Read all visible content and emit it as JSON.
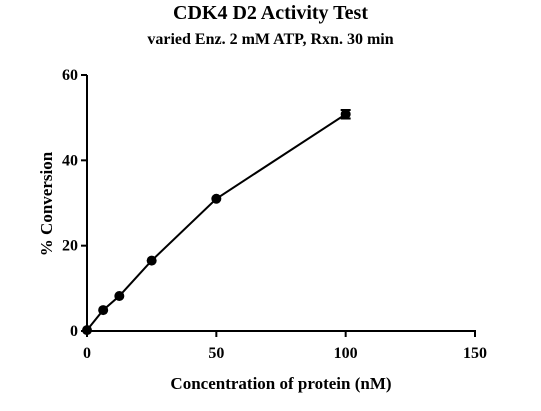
{
  "chart_data": {
    "type": "scatter",
    "title": "CDK4 D2 Activity Test",
    "subtitle": "varied Enz. 2 mM ATP, Rxn. 30 min",
    "xlabel": "Concentration of protein (nM)",
    "ylabel": "% Conversion",
    "xlim": [
      0,
      150
    ],
    "ylim": [
      0,
      60
    ],
    "xticks": [
      0,
      50,
      100,
      150
    ],
    "yticks": [
      0,
      20,
      40,
      60
    ],
    "grid": false,
    "legend": "none",
    "line_color": "#000000",
    "marker": "filled-circle",
    "x": [
      0,
      6.25,
      12.5,
      25,
      50,
      100
    ],
    "y": [
      0.2,
      4.9,
      8.2,
      16.5,
      31.0,
      50.8
    ],
    "error": [
      0,
      0,
      0,
      0,
      0,
      1.0
    ]
  }
}
